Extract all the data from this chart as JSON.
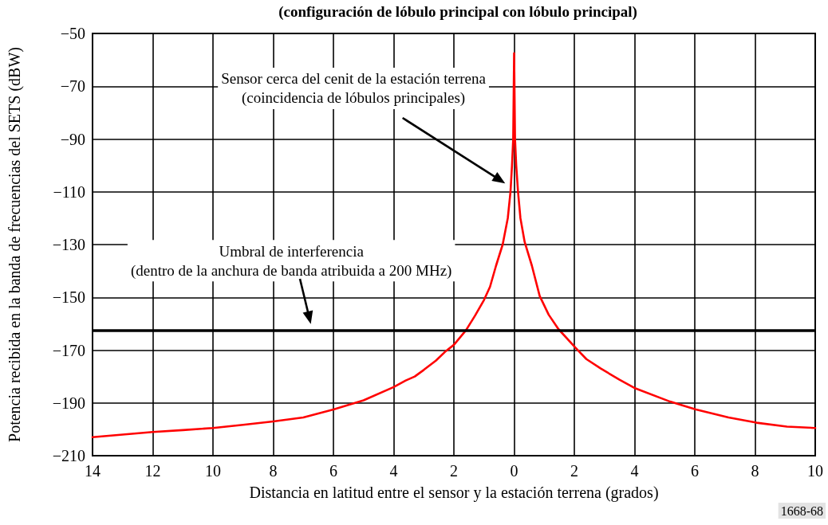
{
  "chart_data": {
    "type": "line",
    "title": "(configuración de lóbulo principal con lóbulo principal)",
    "xlabel": "Distancia en latitud entre el sensor y la estación terrena (grados)",
    "ylabel": "Potencia recibida en la banda de frecuencias del SETS (dBW)",
    "x": [
      -14,
      -12,
      -11,
      -10,
      -9,
      -8,
      -7,
      -6,
      -5,
      -4,
      -3.6,
      -3.3,
      -3,
      -2.6,
      -2.3,
      -2,
      -1.6,
      -1.3,
      -1,
      -0.8,
      -0.6,
      -0.38,
      -0.21,
      -0.12,
      -0.07,
      -0.03,
      0,
      0.03,
      0.07,
      0.13,
      0.21,
      0.35,
      0.59,
      0.85,
      1.15,
      1.47,
      2.03,
      2.4,
      2.88,
      3.5,
      4.03,
      5.18,
      6.04,
      7.12,
      8.05,
      9.06,
      10
    ],
    "values": [
      -203,
      -201,
      -200.3,
      -199.5,
      -198.3,
      -197,
      -195.5,
      -192.5,
      -189,
      -184,
      -181.5,
      -180,
      -177.5,
      -174,
      -170.7,
      -168,
      -162.5,
      -157,
      -151,
      -146,
      -138,
      -130,
      -120,
      -110,
      -100,
      -90,
      -57.5,
      -90,
      -100,
      -110,
      -120,
      -129,
      -138,
      -149.5,
      -156.6,
      -162,
      -169,
      -173.4,
      -177,
      -181.2,
      -184.5,
      -189.5,
      -192.5,
      -195.5,
      -197.5,
      -199,
      -199.5
    ],
    "color": "#ff0000",
    "xlim": [
      -14,
      10
    ],
    "xticks": [
      {
        "value": -14,
        "label": "14"
      },
      {
        "value": -12,
        "label": "12"
      },
      {
        "value": -10,
        "label": "10"
      },
      {
        "value": -8,
        "label": "8"
      },
      {
        "value": -6,
        "label": "6"
      },
      {
        "value": -4,
        "label": "4"
      },
      {
        "value": -2,
        "label": "2"
      },
      0,
      2,
      4,
      6,
      8,
      10
    ],
    "ylim": [
      -210,
      -50
    ],
    "yticks": [
      {
        "value": -210,
        "label": "−210"
      },
      {
        "value": -190,
        "label": "−190"
      },
      {
        "value": -170,
        "label": "−170"
      },
      {
        "value": -150,
        "label": "−150"
      },
      {
        "value": -130,
        "label": "−130"
      },
      {
        "value": -110,
        "label": "−110"
      },
      {
        "value": -90,
        "label": "−90"
      },
      {
        "value": -70,
        "label": "−70"
      },
      {
        "value": -50,
        "label": "−50"
      }
    ],
    "ref_lines": [
      {
        "axis": "y",
        "value": -162.5,
        "color": "#000000"
      }
    ],
    "annotations": [
      "Sensor cerca del cenit de la estación terrena\n(coincidencia de lóbulos principales)",
      "Umbral de interferencia\n(dentro de la anchura de banda atribuida a 200 MHz)",
      "1668-68"
    ],
    "grid": true,
    "marker": "none",
    "line_style": "solid"
  }
}
